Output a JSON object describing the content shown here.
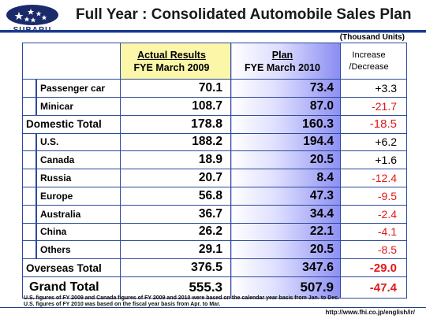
{
  "brand": {
    "logo_text": "SUBARU"
  },
  "title": "Full Year : Consolidated Automobile Sales Plan",
  "units": "(Thousand Units)",
  "header": {
    "actual_line1": "Actual Results",
    "actual_line2": "FYE March 2009",
    "plan_line1": "Plan",
    "plan_line2": "FYE March 2010",
    "inc_line1": "Increase",
    "inc_line2": "/Decrease"
  },
  "rows": [
    {
      "label": "Passenger car",
      "actual": "70.1",
      "plan": "73.4",
      "change": "+3.3"
    },
    {
      "label": "Minicar",
      "actual": "108.7",
      "plan": "87.0",
      "change": "-21.7"
    },
    {
      "label": "Domestic Total",
      "actual": "178.8",
      "plan": "160.3",
      "change": "-18.5"
    },
    {
      "label": "U.S.",
      "actual": "188.2",
      "plan": "194.4",
      "change": "+6.2"
    },
    {
      "label": "Canada",
      "actual": "18.9",
      "plan": "20.5",
      "change": "+1.6"
    },
    {
      "label": "Russia",
      "actual": "20.7",
      "plan": "8.4",
      "change": "-12.4"
    },
    {
      "label": "Europe",
      "actual": "56.8",
      "plan": "47.3",
      "change": "-9.5"
    },
    {
      "label": "Australia",
      "actual": "36.7",
      "plan": "34.4",
      "change": "-2.4"
    },
    {
      "label": "China",
      "actual": "26.2",
      "plan": "22.1",
      "change": "-4.1"
    },
    {
      "label": "Others",
      "actual": "29.1",
      "plan": "20.5",
      "change": "-8.5"
    },
    {
      "label": "Overseas Total",
      "actual": "376.5",
      "plan": "347.6",
      "change": "-29.0"
    },
    {
      "label": "Grand Total",
      "actual": "555.3",
      "plan": "507.9",
      "change": "-47.4"
    }
  ],
  "notes": {
    "line1": "U.S. figures of FY 2009 and Canada figures of FY 2009 and 2010 were based on the calendar year basis from Jan. to Dec.",
    "line2": "U.S. figures of FY 2010 was based on the fiscal year basis from Apr. to Mar."
  },
  "url": "http://www.fhi.co.jp/english/ir/",
  "colors": {
    "accent": "#1b3a8c",
    "actual_header_bg": "#fbf6a8",
    "plan_gradient_end": "#8a8cf2",
    "negative": "#e0191b"
  }
}
